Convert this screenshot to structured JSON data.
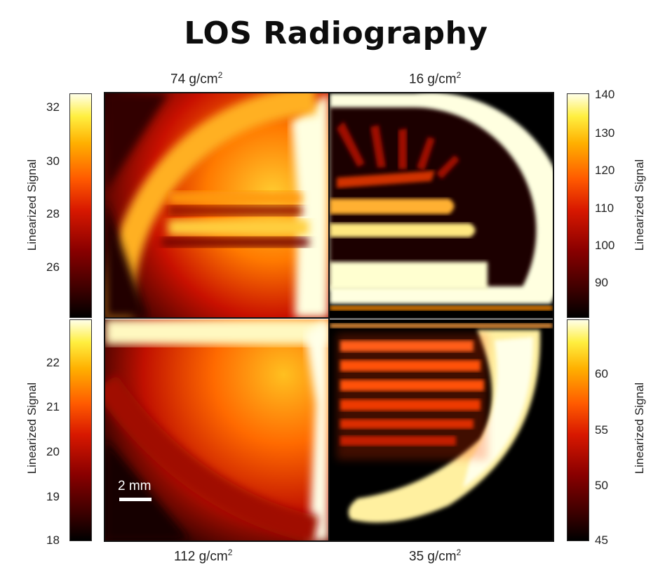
{
  "title": "LOS Radiography",
  "quadrants": {
    "top_left": {
      "label_value": "74 g/cm",
      "label_exp": "2"
    },
    "top_right": {
      "label_value": "16 g/cm",
      "label_exp": "2"
    },
    "bottom_left": {
      "label_value": "112 g/cm",
      "label_exp": "2"
    },
    "bottom_right": {
      "label_value": "35 g/cm",
      "label_exp": "2"
    }
  },
  "colorbars": {
    "top_left": {
      "axis_label": "Linearized Signal",
      "ticks": [
        "32",
        "30",
        "28",
        "26"
      ]
    },
    "top_right": {
      "axis_label": "Linearized Signal",
      "ticks": [
        "140",
        "130",
        "120",
        "110",
        "100",
        "90"
      ]
    },
    "bottom_left": {
      "axis_label": "Linearized Signal",
      "ticks": [
        "22",
        "21",
        "20",
        "19",
        "18"
      ]
    },
    "bottom_right": {
      "axis_label": "Linearized Signal",
      "ticks": [
        "60",
        "55",
        "50",
        "45"
      ]
    }
  },
  "scale_bar": {
    "label": "2 mm"
  },
  "colormap": [
    "#000000",
    "#8a0000",
    "#d81800",
    "#ff5a00",
    "#ffb000",
    "#ffef40",
    "#ffffe8"
  ]
}
